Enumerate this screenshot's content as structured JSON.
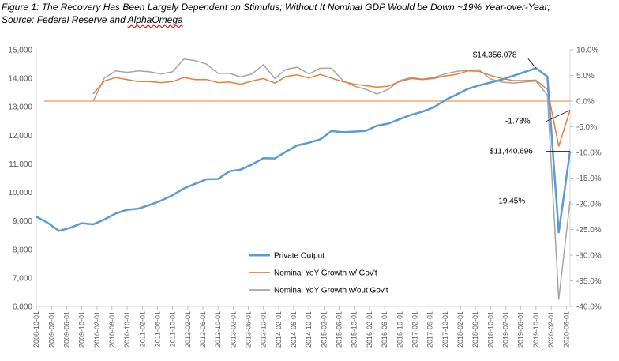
{
  "caption": {
    "line1": "Figure 1: The Recovery Has Been Largely Dependent on Stimulus; Without It Nominal GDP Would be Down ~19% Year-over-Year;",
    "line2_prefix": "Source: Federal Reserve and ",
    "line2_source": "AlphaOmega"
  },
  "chart_data": {
    "type": "line",
    "x": [
      "2008-10-01",
      "2009-01-01",
      "2009-04-01",
      "2009-07-01",
      "2009-10-01",
      "2010-01-01",
      "2010-04-01",
      "2010-07-01",
      "2010-10-01",
      "2011-01-01",
      "2011-04-01",
      "2011-07-01",
      "2011-10-01",
      "2012-01-01",
      "2012-04-01",
      "2012-07-01",
      "2012-10-01",
      "2013-01-01",
      "2013-04-01",
      "2013-07-01",
      "2013-10-01",
      "2014-01-01",
      "2014-04-01",
      "2014-07-01",
      "2014-10-01",
      "2015-01-01",
      "2015-04-01",
      "2015-07-01",
      "2015-10-01",
      "2016-01-01",
      "2016-04-01",
      "2016-07-01",
      "2016-10-01",
      "2017-01-01",
      "2017-04-01",
      "2017-07-01",
      "2017-10-01",
      "2018-01-01",
      "2018-04-01",
      "2018-07-01",
      "2018-10-01",
      "2019-01-01",
      "2019-04-01",
      "2019-07-01",
      "2019-10-01",
      "2020-01-01",
      "2020-04-01",
      "2020-07-01"
    ],
    "x_tick_labels": [
      "2008-10-01",
      "2009-02-01",
      "2009-06-01",
      "2009-10-01",
      "2010-02-01",
      "2010-06-01",
      "2010-10-01",
      "2011-02-01",
      "2011-06-01",
      "2011-10-01",
      "2012-02-01",
      "2012-06-01",
      "2012-10-01",
      "2013-02-01",
      "2013-06-01",
      "2013-10-01",
      "2014-02-01",
      "2014-06-01",
      "2014-10-01",
      "2015-02-01",
      "2015-06-01",
      "2015-10-01",
      "2016-02-01",
      "2016-06-01",
      "2016-10-01",
      "2017-02-01",
      "2017-06-01",
      "2017-10-01",
      "2018-02-01",
      "2018-06-01",
      "2018-10-01",
      "2019-02-01",
      "2019-06-01",
      "2019-10-01",
      "2020-02-01",
      "2020-06-01"
    ],
    "y_left": {
      "ylim": [
        6000,
        15000
      ],
      "ticks": [
        "6,000",
        "7,000",
        "8,000",
        "9,000",
        "10,000",
        "11,000",
        "12,000",
        "13,000",
        "14,000",
        "15,000"
      ]
    },
    "y_right": {
      "ylim": [
        -40,
        10
      ],
      "ticks": [
        "-40.0%",
        "-35.0%",
        "-30.0%",
        "-25.0%",
        "-20.0%",
        "-15.0%",
        "-10.0%",
        "-5.0%",
        "0.0%",
        "5.0%",
        "10.0%"
      ]
    },
    "series": [
      {
        "name": "Private Output",
        "axis": "left",
        "color": "#5b9bd5",
        "values": [
          9150,
          8930,
          8650,
          8760,
          8920,
          8880,
          9050,
          9260,
          9390,
          9430,
          9560,
          9710,
          9900,
          10140,
          10300,
          10460,
          10470,
          10740,
          10800,
          10980,
          11200,
          11190,
          11430,
          11650,
          11740,
          11860,
          12150,
          12110,
          12130,
          12160,
          12340,
          12410,
          12570,
          12720,
          12830,
          12980,
          13240,
          13430,
          13630,
          13750,
          13850,
          13960,
          14090,
          14220,
          14356,
          14060,
          8600,
          11441
        ]
      },
      {
        "name": "Nominal YoY Growth w/ Gov't",
        "axis": "right",
        "color": "#ed7d31",
        "values": [
          null,
          null,
          null,
          null,
          null,
          1.4,
          3.9,
          4.6,
          4.2,
          3.8,
          3.8,
          3.6,
          3.8,
          4.6,
          4.2,
          4.2,
          3.6,
          3.7,
          3.3,
          3.9,
          4.4,
          3.5,
          4.8,
          5.1,
          4.5,
          5.2,
          4.5,
          3.8,
          3.3,
          3.0,
          2.7,
          2.9,
          3.8,
          4.4,
          4.2,
          4.4,
          4.9,
          5.2,
          5.9,
          5.8,
          5.0,
          4.4,
          4.0,
          4.0,
          4.1,
          2.3,
          -8.8,
          -1.78
        ]
      },
      {
        "name": "Nominal YoY Growth w/out Gov't",
        "axis": "right",
        "color": "#a5a5a5",
        "values": [
          null,
          null,
          null,
          null,
          null,
          0.0,
          4.5,
          5.9,
          5.6,
          5.9,
          5.7,
          5.3,
          5.7,
          8.2,
          7.9,
          7.2,
          5.4,
          5.4,
          4.7,
          5.3,
          7.1,
          4.4,
          6.2,
          6.6,
          5.3,
          6.4,
          6.4,
          4.0,
          2.9,
          2.3,
          1.4,
          2.3,
          4.0,
          4.6,
          4.3,
          4.6,
          5.3,
          5.8,
          6.0,
          6.1,
          4.3,
          3.7,
          3.5,
          3.7,
          3.9,
          1.2,
          -38.6,
          -19.45
        ]
      }
    ],
    "annotations": [
      {
        "text": "$14,356.078",
        "series": "Private Output",
        "index": 44
      },
      {
        "text": "-1.78%",
        "series": "Nominal YoY Growth w/ Gov't",
        "index": 47
      },
      {
        "text": "$11,440.696",
        "series": "Private Output",
        "index": 47
      },
      {
        "text": "-19.45%",
        "series": "Nominal YoY Growth w/out Gov't",
        "index": 47
      }
    ],
    "legend_placement": "bottom-center",
    "grid": false
  }
}
